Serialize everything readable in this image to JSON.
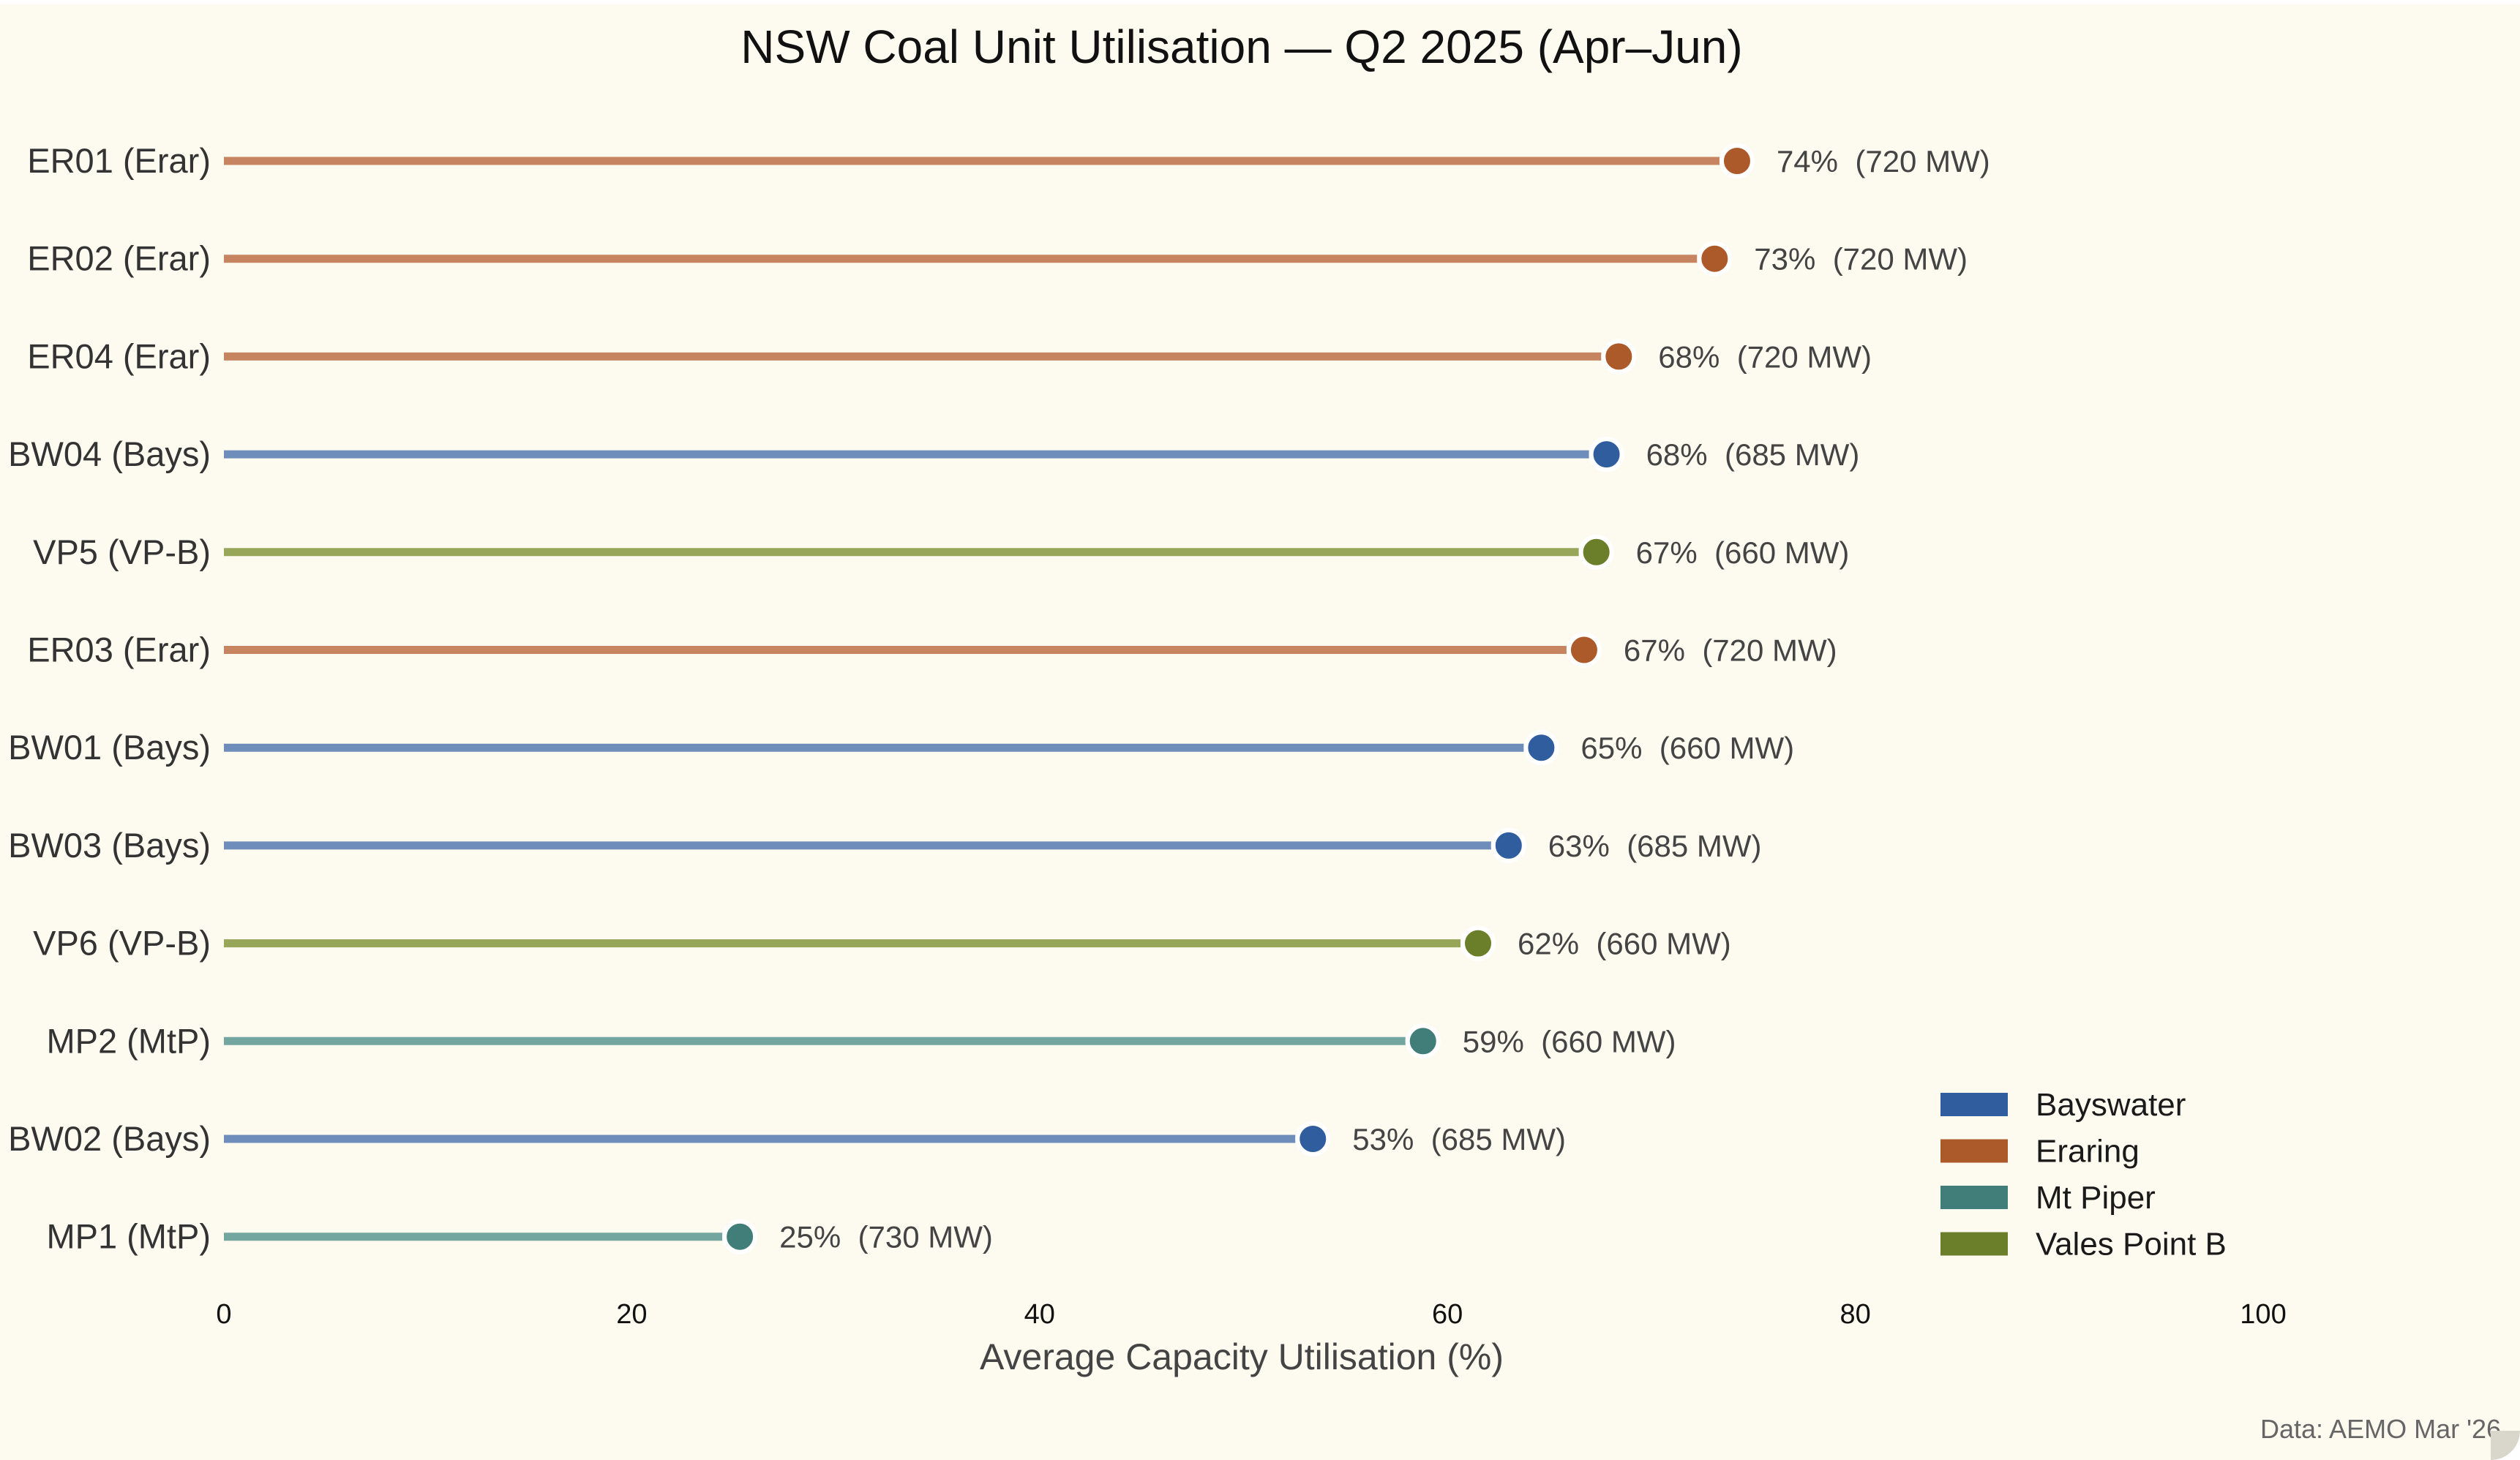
{
  "chart_data": {
    "type": "lollipop",
    "title": "NSW Coal Unit Utilisation — Q2 2025 (Apr–Jun)",
    "xlabel": "Average Capacity Utilisation (%)",
    "ylabel": "",
    "xlim": [
      0,
      100
    ],
    "xticks": [
      0,
      20,
      40,
      60,
      80,
      100
    ],
    "grid": false,
    "legend_position": "bottom-right",
    "source_note": "Data: AEMO Mar '26",
    "stations": [
      {
        "name": "Bayswater",
        "color": "#2F5D9E",
        "line_color": "#6E8DBA"
      },
      {
        "name": "Eraring",
        "color": "#AD5A2A",
        "line_color": "#C68560"
      },
      {
        "name": "Mt Piper",
        "color": "#417E79",
        "line_color": "#74A6A0"
      },
      {
        "name": "Vales Point B",
        "color": "#6B7F2A",
        "line_color": "#98A65A"
      }
    ],
    "units": [
      {
        "label": "ER01 (Erar)",
        "station": "Eraring",
        "value": 74.2,
        "value_label": "74%",
        "capacity_label": "(720 MW)"
      },
      {
        "label": "ER02 (Erar)",
        "station": "Eraring",
        "value": 73.1,
        "value_label": "73%",
        "capacity_label": "(720 MW)"
      },
      {
        "label": "ER04 (Erar)",
        "station": "Eraring",
        "value": 68.4,
        "value_label": "68%",
        "capacity_label": "(720 MW)"
      },
      {
        "label": "BW04 (Bays)",
        "station": "Bayswater",
        "value": 67.8,
        "value_label": "68%",
        "capacity_label": "(685 MW)"
      },
      {
        "label": "VP5 (VP-B)",
        "station": "Vales Point B",
        "value": 67.3,
        "value_label": "67%",
        "capacity_label": "(660 MW)"
      },
      {
        "label": "ER03 (Erar)",
        "station": "Eraring",
        "value": 66.7,
        "value_label": "67%",
        "capacity_label": "(720 MW)"
      },
      {
        "label": "BW01 (Bays)",
        "station": "Bayswater",
        "value": 64.6,
        "value_label": "65%",
        "capacity_label": "(660 MW)"
      },
      {
        "label": "BW03 (Bays)",
        "station": "Bayswater",
        "value": 63.0,
        "value_label": "63%",
        "capacity_label": "(685 MW)"
      },
      {
        "label": "VP6 (VP-B)",
        "station": "Vales Point B",
        "value": 61.5,
        "value_label": "62%",
        "capacity_label": "(660 MW)"
      },
      {
        "label": "MP2 (MtP)",
        "station": "Mt Piper",
        "value": 58.8,
        "value_label": "59%",
        "capacity_label": "(660 MW)"
      },
      {
        "label": "BW02 (Bays)",
        "station": "Bayswater",
        "value": 53.4,
        "value_label": "53%",
        "capacity_label": "(685 MW)"
      },
      {
        "label": "MP1 (MtP)",
        "station": "Mt Piper",
        "value": 25.3,
        "value_label": "25%",
        "capacity_label": "(730 MW)"
      }
    ]
  }
}
